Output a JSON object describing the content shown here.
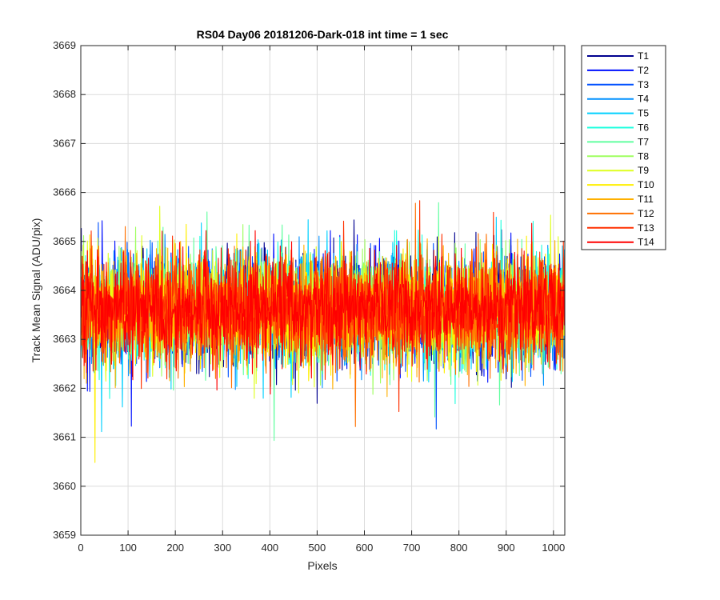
{
  "chart_data": {
    "type": "line",
    "title": "RS04 Day06 20181206-Dark-018 int time = 1 sec",
    "xlabel": "Pixels",
    "ylabel": "Track Mean Signal (ADU/pix)",
    "xlim": [
      0,
      1024
    ],
    "ylim": [
      3659,
      3669
    ],
    "xticks": [
      0,
      100,
      200,
      300,
      400,
      500,
      600,
      700,
      800,
      900,
      1000
    ],
    "yticks": [
      3659,
      3660,
      3661,
      3662,
      3663,
      3664,
      3665,
      3666,
      3667,
      3668,
      3669
    ],
    "grid": true,
    "legend_position": "outside-top-right",
    "x_range": [
      1,
      1024
    ],
    "series": [
      {
        "name": "T1",
        "color": "#00008f",
        "center": 3663.6,
        "spread": 0.85
      },
      {
        "name": "T2",
        "color": "#0010ff",
        "center": 3663.6,
        "spread": 0.85
      },
      {
        "name": "T3",
        "color": "#0050ff",
        "center": 3663.6,
        "spread": 0.85
      },
      {
        "name": "T4",
        "color": "#0090ff",
        "center": 3663.6,
        "spread": 0.85
      },
      {
        "name": "T5",
        "color": "#00d0ff",
        "center": 3663.6,
        "spread": 0.85
      },
      {
        "name": "T6",
        "color": "#20ffdf",
        "center": 3663.6,
        "spread": 0.85
      },
      {
        "name": "T7",
        "color": "#60ff9f",
        "center": 3663.6,
        "spread": 0.85
      },
      {
        "name": "T8",
        "color": "#9fff60",
        "center": 3663.6,
        "spread": 0.85
      },
      {
        "name": "T9",
        "color": "#dfff20",
        "center": 3663.6,
        "spread": 0.85
      },
      {
        "name": "T10",
        "color": "#ffef00",
        "center": 3663.6,
        "spread": 0.85
      },
      {
        "name": "T11",
        "color": "#ffb000",
        "center": 3663.6,
        "spread": 0.85
      },
      {
        "name": "T12",
        "color": "#ff7000",
        "center": 3663.6,
        "spread": 0.85
      },
      {
        "name": "T13",
        "color": "#ff3000",
        "center": 3663.6,
        "spread": 0.85
      },
      {
        "name": "T14",
        "color": "#ff0000",
        "center": 3663.6,
        "spread": 0.85
      }
    ]
  }
}
